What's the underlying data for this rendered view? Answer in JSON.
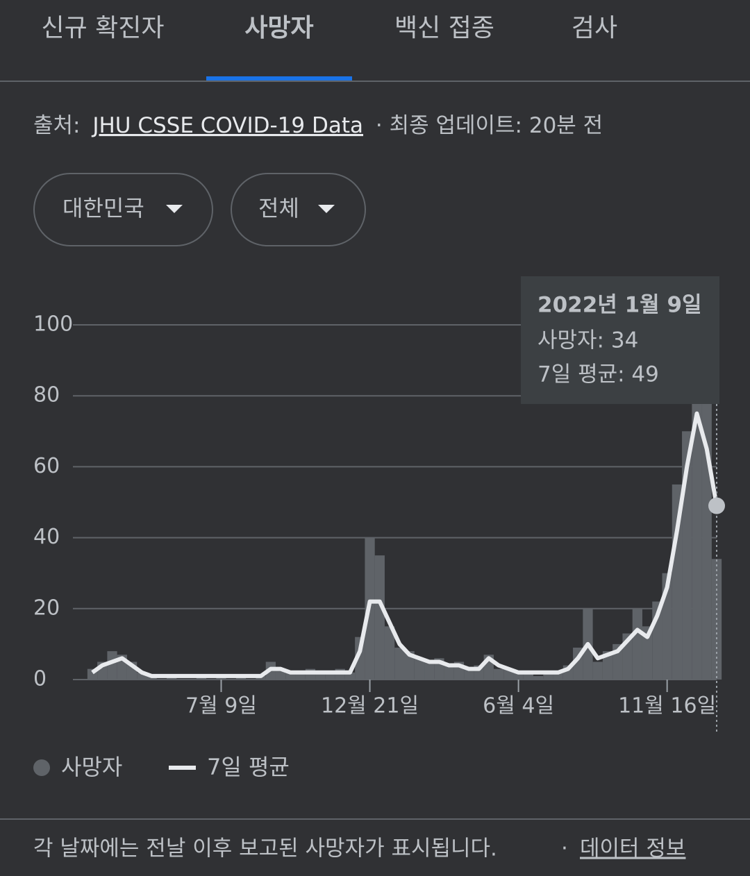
{
  "tabs": [
    "신규 확진자",
    "사망자",
    "백신 접종",
    "검사"
  ],
  "active_tab": 1,
  "source": {
    "prefix": "출처:",
    "link": "JHU CSSE COVID-19 Data",
    "suffix": "· 최종 업데이트: 20분 전"
  },
  "filters": [
    "대한민국",
    "전체"
  ],
  "tooltip": {
    "date": "2022년 1월 9일",
    "lines": [
      "사망자: 34",
      "7일 평균: 49"
    ]
  },
  "chart_data": {
    "type": "bar",
    "categories": [
      null,
      null,
      null,
      null,
      null,
      null,
      null,
      null,
      null,
      null,
      null,
      null,
      null,
      "7월 9일",
      null,
      null,
      null,
      null,
      null,
      null,
      null,
      null,
      null,
      null,
      null,
      null,
      null,
      null,
      "12월 21일",
      null,
      null,
      null,
      null,
      null,
      null,
      null,
      null,
      null,
      null,
      null,
      null,
      null,
      null,
      "6월 4일",
      null,
      null,
      null,
      null,
      null,
      null,
      null,
      null,
      null,
      null,
      null,
      null,
      null,
      null,
      "11월 16일",
      null,
      null,
      null,
      null,
      null
    ],
    "series": [
      {
        "name": "사망자",
        "color": "#5f6368",
        "values": [
          3,
          5,
          8,
          7,
          5,
          2,
          1,
          0,
          1,
          0,
          0,
          1,
          0,
          1,
          0,
          1,
          0,
          1,
          5,
          3,
          2,
          2,
          3,
          2,
          2,
          3,
          2,
          12,
          40,
          35,
          15,
          9,
          8,
          6,
          5,
          6,
          4,
          5,
          3,
          4,
          7,
          3,
          3,
          2,
          2,
          1,
          2,
          2,
          4,
          9,
          20,
          5,
          8,
          10,
          13,
          20,
          15,
          22,
          30,
          55,
          70,
          92,
          80,
          34
        ]
      },
      {
        "name": "7일 평균",
        "type": "line",
        "color": "#e8eaed",
        "values": [
          2,
          4,
          5,
          6,
          4,
          2,
          1,
          1,
          1,
          1,
          1,
          1,
          1,
          1,
          1,
          1,
          1,
          1,
          3,
          3,
          2,
          2,
          2,
          2,
          2,
          2,
          2,
          8,
          22,
          22,
          16,
          10,
          7,
          6,
          5,
          5,
          4,
          4,
          3,
          3,
          6,
          4,
          3,
          2,
          2,
          2,
          2,
          2,
          3,
          6,
          10,
          6,
          7,
          8,
          11,
          14,
          12,
          18,
          26,
          42,
          60,
          75,
          65,
          49
        ]
      }
    ],
    "ylim": [
      0,
      100
    ],
    "yticks": [
      0,
      20,
      40,
      60,
      80,
      100
    ],
    "grid": true
  },
  "footer": {
    "note": "각 날짜에는 전날 이후 보고된 사망자가 표시됩니다.",
    "separator": "·",
    "link": "데이터 정보"
  }
}
